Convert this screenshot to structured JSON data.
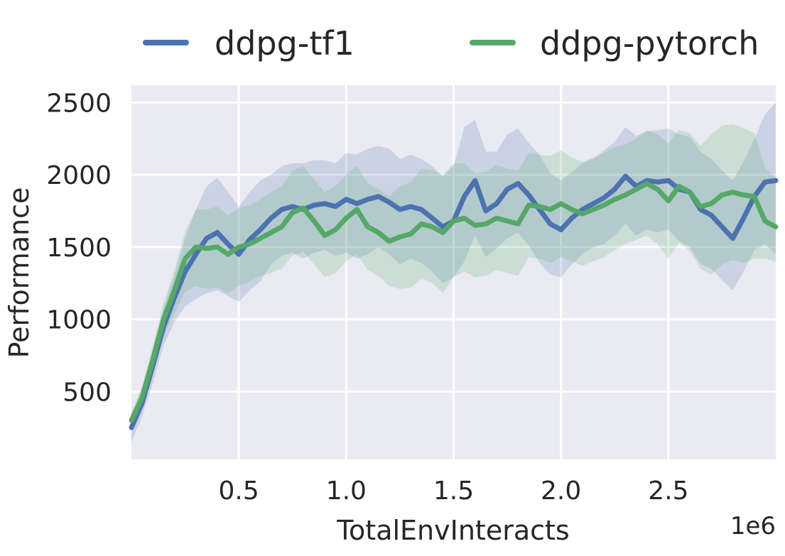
{
  "chart_data": {
    "type": "line",
    "xlabel": "TotalEnvInteracts",
    "ylabel": "Performance",
    "x_offset_label": "1e6",
    "xlim": [
      0.0,
      3.0
    ],
    "ylim": [
      0,
      2500
    ],
    "xticks": [
      0.5,
      1.0,
      1.5,
      2.0,
      2.5
    ],
    "xtick_labels": [
      "0.5",
      "1.0",
      "1.5",
      "2.0",
      "2.5"
    ],
    "yticks": [
      500,
      1000,
      1500,
      2000,
      2500
    ],
    "ytick_labels": [
      "500",
      "1000",
      "1500",
      "2000",
      "2500"
    ],
    "grid": true,
    "legend_position": "top",
    "series": [
      {
        "name": "ddpg-tf1",
        "color": "#4c72b0",
        "x": [
          0.0,
          0.05,
          0.1,
          0.15,
          0.2,
          0.25,
          0.3,
          0.35,
          0.4,
          0.45,
          0.5,
          0.55,
          0.6,
          0.65,
          0.7,
          0.75,
          0.8,
          0.85,
          0.9,
          0.95,
          1.0,
          1.05,
          1.1,
          1.15,
          1.2,
          1.25,
          1.3,
          1.35,
          1.4,
          1.45,
          1.5,
          1.55,
          1.6,
          1.65,
          1.7,
          1.75,
          1.8,
          1.85,
          1.9,
          1.95,
          2.0,
          2.05,
          2.1,
          2.15,
          2.2,
          2.25,
          2.3,
          2.35,
          2.4,
          2.45,
          2.5,
          2.55,
          2.6,
          2.65,
          2.7,
          2.75,
          2.8,
          2.85,
          2.9,
          2.95,
          3.0
        ],
        "mean": [
          250,
          420,
          680,
          950,
          1150,
          1330,
          1450,
          1560,
          1600,
          1520,
          1450,
          1550,
          1620,
          1700,
          1760,
          1780,
          1760,
          1790,
          1800,
          1780,
          1830,
          1800,
          1830,
          1850,
          1810,
          1760,
          1780,
          1760,
          1700,
          1640,
          1680,
          1850,
          1960,
          1750,
          1800,
          1900,
          1940,
          1860,
          1760,
          1660,
          1620,
          1700,
          1760,
          1800,
          1840,
          1900,
          1990,
          1920,
          1960,
          1950,
          1960,
          1900,
          1880,
          1760,
          1720,
          1640,
          1560,
          1700,
          1850,
          1950,
          1960
        ],
        "lower": [
          150,
          330,
          560,
          820,
          980,
          1090,
          1140,
          1180,
          1200,
          1160,
          1120,
          1200,
          1260,
          1380,
          1440,
          1460,
          1420,
          1460,
          1480,
          1440,
          1460,
          1420,
          1450,
          1500,
          1450,
          1380,
          1420,
          1390,
          1330,
          1250,
          1290,
          1400,
          1580,
          1430,
          1490,
          1560,
          1600,
          1510,
          1390,
          1310,
          1290,
          1380,
          1450,
          1500,
          1520,
          1580,
          1660,
          1580,
          1620,
          1600,
          1620,
          1540,
          1500,
          1380,
          1350,
          1270,
          1200,
          1330,
          1480,
          1520,
          1450
        ],
        "upper": [
          340,
          510,
          800,
          1080,
          1300,
          1560,
          1760,
          1920,
          1980,
          1880,
          1780,
          1880,
          1960,
          2000,
          2060,
          2080,
          2080,
          2100,
          2100,
          2080,
          2150,
          2140,
          2180,
          2200,
          2180,
          2110,
          2140,
          2110,
          2060,
          1990,
          2060,
          2330,
          2380,
          2160,
          2160,
          2280,
          2320,
          2220,
          2140,
          2010,
          1960,
          2020,
          2080,
          2110,
          2170,
          2230,
          2330,
          2270,
          2300,
          2310,
          2320,
          2280,
          2260,
          2160,
          2110,
          2030,
          1960,
          2090,
          2250,
          2420,
          2500
        ]
      },
      {
        "name": "ddpg-pytorch",
        "color": "#55a868",
        "x": [
          0.0,
          0.05,
          0.1,
          0.15,
          0.2,
          0.25,
          0.3,
          0.35,
          0.4,
          0.45,
          0.5,
          0.55,
          0.6,
          0.65,
          0.7,
          0.75,
          0.8,
          0.85,
          0.9,
          0.95,
          1.0,
          1.05,
          1.1,
          1.15,
          1.2,
          1.25,
          1.3,
          1.35,
          1.4,
          1.45,
          1.5,
          1.55,
          1.6,
          1.65,
          1.7,
          1.75,
          1.8,
          1.85,
          1.9,
          1.95,
          2.0,
          2.05,
          2.1,
          2.15,
          2.2,
          2.25,
          2.3,
          2.35,
          2.4,
          2.45,
          2.5,
          2.55,
          2.6,
          2.65,
          2.7,
          2.75,
          2.8,
          2.85,
          2.9,
          2.95,
          3.0
        ],
        "mean": [
          300,
          460,
          720,
          1000,
          1200,
          1420,
          1500,
          1490,
          1500,
          1450,
          1500,
          1520,
          1560,
          1600,
          1640,
          1740,
          1770,
          1680,
          1580,
          1620,
          1700,
          1760,
          1640,
          1600,
          1540,
          1570,
          1590,
          1660,
          1640,
          1600,
          1680,
          1700,
          1650,
          1660,
          1700,
          1680,
          1660,
          1790,
          1780,
          1760,
          1800,
          1760,
          1730,
          1760,
          1790,
          1830,
          1860,
          1900,
          1940,
          1900,
          1820,
          1920,
          1880,
          1780,
          1800,
          1860,
          1880,
          1860,
          1850,
          1680,
          1640
        ],
        "lower": [
          240,
          380,
          620,
          880,
          1040,
          1190,
          1230,
          1210,
          1220,
          1180,
          1230,
          1260,
          1300,
          1320,
          1350,
          1440,
          1470,
          1380,
          1290,
          1320,
          1400,
          1450,
          1340,
          1300,
          1230,
          1210,
          1220,
          1280,
          1250,
          1180,
          1290,
          1330,
          1290,
          1300,
          1340,
          1320,
          1300,
          1430,
          1420,
          1390,
          1430,
          1400,
          1370,
          1400,
          1430,
          1480,
          1520,
          1550,
          1580,
          1520,
          1420,
          1530,
          1470,
          1350,
          1310,
          1380,
          1410,
          1390,
          1420,
          1420,
          1400
        ],
        "upper": [
          360,
          540,
          820,
          1110,
          1340,
          1610,
          1760,
          1760,
          1780,
          1720,
          1770,
          1790,
          1830,
          1880,
          1920,
          2030,
          2060,
          1970,
          1880,
          1920,
          2000,
          2060,
          1940,
          1900,
          1850,
          1920,
          1950,
          2040,
          2030,
          2000,
          2080,
          2080,
          2010,
          2020,
          2070,
          2040,
          2030,
          2150,
          2140,
          2130,
          2170,
          2120,
          2090,
          2120,
          2150,
          2190,
          2210,
          2250,
          2310,
          2280,
          2220,
          2310,
          2290,
          2200,
          2280,
          2340,
          2350,
          2320,
          2290,
          2050,
          1980
        ]
      }
    ]
  }
}
